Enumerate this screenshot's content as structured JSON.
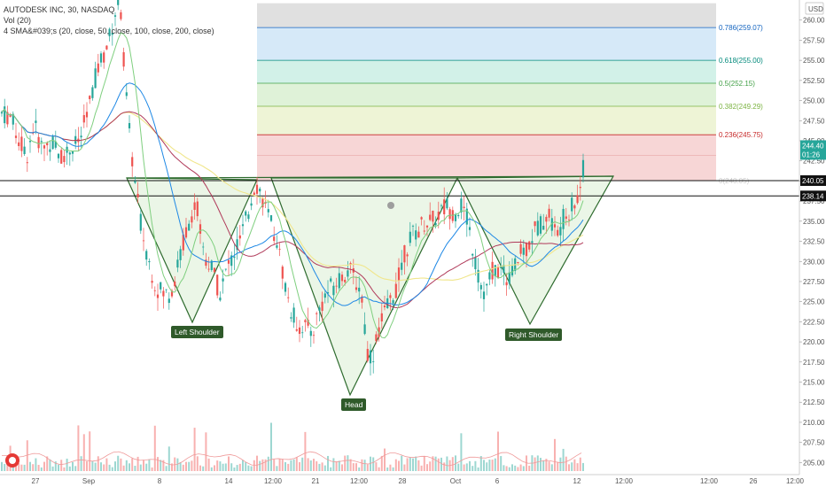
{
  "header": {
    "title": "AUTODESK INC, 30, NASDAQ",
    "vol_label": "Vol (20)",
    "sma_label": "4 SMA&#039;s (20, close, 50, close, 100, close, 200, close)",
    "currency": "USD"
  },
  "chart_data": {
    "type": "candlestick",
    "title": "AUTODESK INC, 30, NASDAQ",
    "ylim": [
      203.5,
      262.5
    ],
    "y_ticks": [
      205.0,
      207.5,
      210.0,
      212.5,
      215.0,
      217.5,
      220.0,
      222.5,
      225.0,
      227.5,
      230.0,
      232.5,
      235.0,
      237.5,
      240.0,
      242.5,
      245.0,
      247.5,
      250.0,
      252.5,
      255.0,
      257.5,
      260.0
    ],
    "x_ticks": [
      "27",
      "Sep",
      "8",
      "14",
      "12:00",
      "21",
      "12:00",
      "28",
      "Oct",
      "6",
      "12",
      "12:00",
      "12:00",
      "26",
      "12:00"
    ],
    "price_labels": [
      {
        "value": 244.4,
        "text": "244.40",
        "color": "#26a69a"
      },
      {
        "value": 243.3,
        "text": "01:26",
        "color": "#26a69a"
      },
      {
        "value": 240.05,
        "text": "240.05",
        "color": "#111111"
      },
      {
        "value": 238.14,
        "text": "238.14",
        "color": "#111111"
      }
    ],
    "horizontal_levels": [
      240.05,
      238.14
    ],
    "fib_levels": [
      {
        "ratio": "0.786",
        "price": 259.07,
        "text": "0.786(259.07)",
        "color": "#1565c0"
      },
      {
        "ratio": "0.618",
        "price": 255.0,
        "text": "0.618(255.00)",
        "color": "#00897b"
      },
      {
        "ratio": "0.5",
        "price": 252.15,
        "text": "0.5(252.15)",
        "color": "#43a047"
      },
      {
        "ratio": "0.382",
        "price": 249.29,
        "text": "0.382(249.29)",
        "color": "#7cb342"
      },
      {
        "ratio": "0.236",
        "price": 245.75,
        "text": "0.236(245.75)",
        "color": "#c62828"
      }
    ],
    "fib_faint_label": "0(240.05)",
    "annotations": [
      {
        "text": "Left Shoulder"
      },
      {
        "text": "Head"
      },
      {
        "text": "Right Shoulder"
      }
    ]
  },
  "colors": {
    "up": "#26a69a",
    "down": "#ef5350",
    "sma20": "#7fcf7f",
    "sma50": "#1e88e5",
    "sma100": "#b03a5a",
    "sma200": "#f0e68c",
    "pattern_fill": "#e8f5e3",
    "pattern_stroke": "#2e6b2e",
    "tag_bg": "#2f5a2a"
  }
}
